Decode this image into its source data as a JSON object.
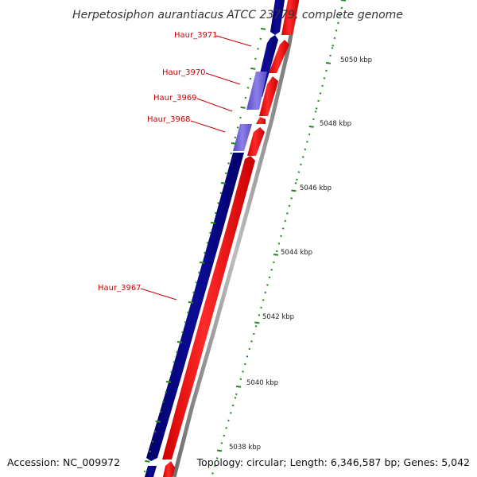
{
  "title": "Herpetosiphon aurantiacus ATCC 23779, complete genome",
  "footer": {
    "accession": "Accession: NC_009972",
    "summary": "Topology: circular; Length: 6,346,587 bp; Genes: 5,042"
  },
  "colors": {
    "backbone": "#8a8a8a",
    "forward_gene": "#ff0000",
    "reverse_gene": "#000080",
    "highlight_gene": "#7060d8",
    "ticks": "#1e8c1e",
    "gene_label": "#cc0000"
  },
  "ruler": {
    "unit": "kbp",
    "labels": [
      "5038 kbp",
      "5040 kbp",
      "5042 kbp",
      "5044 kbp",
      "5046 kbp",
      "5048 kbp",
      "5050 kbp"
    ]
  },
  "genes": [
    {
      "label": "Haur_3971"
    },
    {
      "label": "Haur_3970"
    },
    {
      "label": "Haur_3969"
    },
    {
      "label": "Haur_3968"
    },
    {
      "label": "Haur_3967"
    }
  ]
}
